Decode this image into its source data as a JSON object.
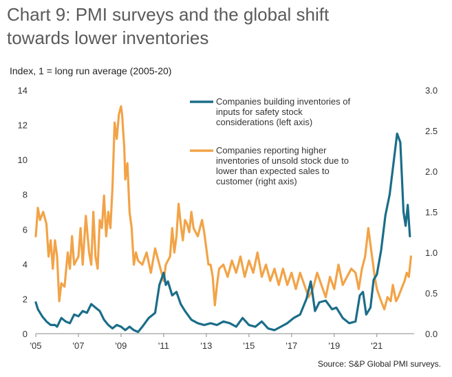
{
  "header": {
    "title_line1": "Chart 9: PMI surveys and the global shift",
    "title_line2": "towards lower inventories",
    "unit_label": "Index, 1 = long run average (2005-20)",
    "source": "Source: S&P Global PMI surveys."
  },
  "colors": {
    "series1": "#1b6d89",
    "series2": "#f2a347",
    "axis": "#888888"
  },
  "chart_data": {
    "type": "line",
    "xlabel": "",
    "ylabel": "Index, 1 = long run average (2005-20)",
    "xlim": [
      2005,
      2022.75
    ],
    "x_ticks": [
      "'05",
      "'07",
      "'09",
      "'11",
      "'13",
      "'15",
      "'17",
      "'19",
      "'21"
    ],
    "x_tick_values": [
      2005,
      2007,
      2009,
      2011,
      2013,
      2015,
      2017,
      2019,
      2021
    ],
    "y_left": {
      "lim": [
        0,
        14
      ],
      "ticks": [
        0,
        2,
        4,
        6,
        8,
        10,
        12,
        14
      ]
    },
    "y_right": {
      "lim": [
        0,
        3
      ],
      "ticks": [
        "0.0",
        "0.5",
        "1.0",
        "1.5",
        "2.0",
        "2.5",
        "3.0"
      ]
    },
    "grid": false,
    "legend_position": "top-right",
    "series": [
      {
        "name": "Companies building inventories of inputs for safety stock considerations (left axis)",
        "legend_lines": [
          "Companies building inventories of",
          "inputs for safety stock",
          "considerations (left axis)"
        ],
        "axis": "left",
        "points": [
          [
            2005.0,
            1.8
          ],
          [
            2005.1,
            1.4
          ],
          [
            2005.3,
            1.0
          ],
          [
            2005.5,
            0.7
          ],
          [
            2005.7,
            0.5
          ],
          [
            2005.9,
            0.5
          ],
          [
            2006.0,
            0.4
          ],
          [
            2006.2,
            0.9
          ],
          [
            2006.4,
            0.7
          ],
          [
            2006.6,
            0.6
          ],
          [
            2006.8,
            1.1
          ],
          [
            2007.0,
            1.0
          ],
          [
            2007.2,
            1.3
          ],
          [
            2007.4,
            1.2
          ],
          [
            2007.6,
            1.7
          ],
          [
            2007.8,
            1.5
          ],
          [
            2008.0,
            1.3
          ],
          [
            2008.2,
            0.8
          ],
          [
            2008.4,
            0.5
          ],
          [
            2008.6,
            0.3
          ],
          [
            2008.8,
            0.5
          ],
          [
            2009.0,
            0.4
          ],
          [
            2009.2,
            0.2
          ],
          [
            2009.4,
            0.4
          ],
          [
            2009.6,
            0.2
          ],
          [
            2009.8,
            0.1
          ],
          [
            2010.0,
            0.4
          ],
          [
            2010.3,
            0.9
          ],
          [
            2010.6,
            1.2
          ],
          [
            2010.8,
            2.8
          ],
          [
            2011.0,
            3.5
          ],
          [
            2011.1,
            2.8
          ],
          [
            2011.2,
            3.0
          ],
          [
            2011.4,
            2.2
          ],
          [
            2011.6,
            2.4
          ],
          [
            2011.8,
            1.7
          ],
          [
            2012.0,
            1.3
          ],
          [
            2012.3,
            0.8
          ],
          [
            2012.6,
            0.6
          ],
          [
            2012.9,
            0.5
          ],
          [
            2013.2,
            0.6
          ],
          [
            2013.5,
            0.5
          ],
          [
            2013.8,
            0.7
          ],
          [
            2014.1,
            0.6
          ],
          [
            2014.4,
            0.4
          ],
          [
            2014.7,
            0.9
          ],
          [
            2015.0,
            0.5
          ],
          [
            2015.3,
            0.4
          ],
          [
            2015.6,
            0.7
          ],
          [
            2015.9,
            0.3
          ],
          [
            2016.2,
            0.2
          ],
          [
            2016.5,
            0.4
          ],
          [
            2016.8,
            0.6
          ],
          [
            2017.1,
            0.9
          ],
          [
            2017.4,
            1.1
          ],
          [
            2017.7,
            2.0
          ],
          [
            2017.9,
            3.0
          ],
          [
            2018.1,
            1.3
          ],
          [
            2018.3,
            1.8
          ],
          [
            2018.6,
            1.9
          ],
          [
            2018.9,
            1.4
          ],
          [
            2019.1,
            1.5
          ],
          [
            2019.4,
            0.9
          ],
          [
            2019.7,
            0.6
          ],
          [
            2020.0,
            0.7
          ],
          [
            2020.2,
            2.2
          ],
          [
            2020.35,
            2.4
          ],
          [
            2020.5,
            1.1
          ],
          [
            2020.7,
            1.5
          ],
          [
            2020.85,
            3.1
          ],
          [
            2021.0,
            3.4
          ],
          [
            2021.2,
            4.8
          ],
          [
            2021.4,
            6.8
          ],
          [
            2021.6,
            8.0
          ],
          [
            2021.8,
            10.0
          ],
          [
            2021.95,
            11.5
          ],
          [
            2022.1,
            11.0
          ],
          [
            2022.25,
            7.0
          ],
          [
            2022.35,
            6.2
          ],
          [
            2022.45,
            7.4
          ],
          [
            2022.55,
            5.6
          ]
        ]
      },
      {
        "name": "Companies reporting higher inventories of unsold stock due to lower than expected sales to customer (right axis)",
        "legend_lines": [
          "Companies reporting higher",
          "inventories of unsold stock due to",
          "lower than expected sales to",
          "customer (right axis)"
        ],
        "axis": "right",
        "points": [
          [
            2005.0,
            1.2
          ],
          [
            2005.1,
            1.55
          ],
          [
            2005.2,
            1.4
          ],
          [
            2005.35,
            1.5
          ],
          [
            2005.5,
            1.35
          ],
          [
            2005.6,
            0.95
          ],
          [
            2005.7,
            1.15
          ],
          [
            2005.8,
            0.8
          ],
          [
            2005.9,
            1.15
          ],
          [
            2006.0,
            0.95
          ],
          [
            2006.1,
            0.4
          ],
          [
            2006.2,
            0.62
          ],
          [
            2006.35,
            0.58
          ],
          [
            2006.5,
            1.0
          ],
          [
            2006.6,
            0.8
          ],
          [
            2006.7,
            1.2
          ],
          [
            2006.8,
            0.85
          ],
          [
            2007.0,
            0.95
          ],
          [
            2007.1,
            1.3
          ],
          [
            2007.2,
            0.85
          ],
          [
            2007.35,
            1.45
          ],
          [
            2007.5,
            1.0
          ],
          [
            2007.6,
            0.85
          ],
          [
            2007.7,
            1.5
          ],
          [
            2007.8,
            0.95
          ],
          [
            2007.9,
            0.8
          ],
          [
            2008.0,
            1.4
          ],
          [
            2008.1,
            1.3
          ],
          [
            2008.2,
            1.7
          ],
          [
            2008.3,
            1.2
          ],
          [
            2008.4,
            1.5
          ],
          [
            2008.5,
            1.3
          ],
          [
            2008.6,
            1.8
          ],
          [
            2008.7,
            2.6
          ],
          [
            2008.8,
            2.4
          ],
          [
            2008.9,
            2.7
          ],
          [
            2009.0,
            2.8
          ],
          [
            2009.05,
            2.7
          ],
          [
            2009.1,
            2.5
          ],
          [
            2009.15,
            2.3
          ],
          [
            2009.2,
            1.9
          ],
          [
            2009.3,
            2.1
          ],
          [
            2009.4,
            1.5
          ],
          [
            2009.5,
            1.3
          ],
          [
            2009.6,
            0.85
          ],
          [
            2009.7,
            1.0
          ],
          [
            2009.8,
            0.9
          ],
          [
            2010.0,
            0.85
          ],
          [
            2010.2,
            1.0
          ],
          [
            2010.4,
            0.75
          ],
          [
            2010.6,
            1.05
          ],
          [
            2010.8,
            0.85
          ],
          [
            2011.0,
            0.65
          ],
          [
            2011.1,
            0.85
          ],
          [
            2011.3,
            0.95
          ],
          [
            2011.4,
            1.3
          ],
          [
            2011.5,
            1.0
          ],
          [
            2011.6,
            1.2
          ],
          [
            2011.7,
            1.6
          ],
          [
            2011.8,
            1.35
          ],
          [
            2011.9,
            1.15
          ],
          [
            2012.0,
            1.4
          ],
          [
            2012.1,
            1.35
          ],
          [
            2012.2,
            1.25
          ],
          [
            2012.3,
            1.5
          ],
          [
            2012.4,
            1.3
          ],
          [
            2012.6,
            1.2
          ],
          [
            2012.8,
            1.4
          ],
          [
            2012.9,
            1.25
          ],
          [
            2013.0,
            1.05
          ],
          [
            2013.1,
            0.85
          ],
          [
            2013.2,
            0.85
          ],
          [
            2013.3,
            0.7
          ],
          [
            2013.4,
            0.35
          ],
          [
            2013.5,
            0.6
          ],
          [
            2013.6,
            0.8
          ],
          [
            2013.8,
            0.85
          ],
          [
            2014.0,
            0.7
          ],
          [
            2014.2,
            0.9
          ],
          [
            2014.4,
            0.75
          ],
          [
            2014.6,
            0.95
          ],
          [
            2014.8,
            0.7
          ],
          [
            2015.0,
            0.9
          ],
          [
            2015.2,
            0.75
          ],
          [
            2015.4,
            1.0
          ],
          [
            2015.6,
            0.7
          ],
          [
            2015.8,
            0.85
          ],
          [
            2016.0,
            0.65
          ],
          [
            2016.2,
            0.8
          ],
          [
            2016.4,
            0.6
          ],
          [
            2016.6,
            0.8
          ],
          [
            2016.8,
            0.6
          ],
          [
            2017.0,
            0.75
          ],
          [
            2017.2,
            0.55
          ],
          [
            2017.4,
            0.75
          ],
          [
            2017.6,
            0.6
          ],
          [
            2017.8,
            0.45
          ],
          [
            2018.0,
            0.55
          ],
          [
            2018.2,
            0.75
          ],
          [
            2018.4,
            0.6
          ],
          [
            2018.6,
            0.45
          ],
          [
            2018.8,
            0.7
          ],
          [
            2019.0,
            0.55
          ],
          [
            2019.2,
            0.85
          ],
          [
            2019.4,
            0.6
          ],
          [
            2019.6,
            0.7
          ],
          [
            2019.8,
            0.8
          ],
          [
            2020.0,
            0.75
          ],
          [
            2020.15,
            0.55
          ],
          [
            2020.3,
            0.8
          ],
          [
            2020.45,
            0.95
          ],
          [
            2020.6,
            1.3
          ],
          [
            2020.75,
            1.0
          ],
          [
            2020.9,
            0.7
          ],
          [
            2021.0,
            0.55
          ],
          [
            2021.2,
            0.4
          ],
          [
            2021.35,
            0.3
          ],
          [
            2021.5,
            0.45
          ],
          [
            2021.65,
            0.4
          ],
          [
            2021.75,
            0.6
          ],
          [
            2021.9,
            0.4
          ],
          [
            2022.0,
            0.45
          ],
          [
            2022.15,
            0.55
          ],
          [
            2022.3,
            0.65
          ],
          [
            2022.4,
            0.75
          ],
          [
            2022.5,
            0.7
          ],
          [
            2022.6,
            0.95
          ]
        ]
      }
    ]
  }
}
